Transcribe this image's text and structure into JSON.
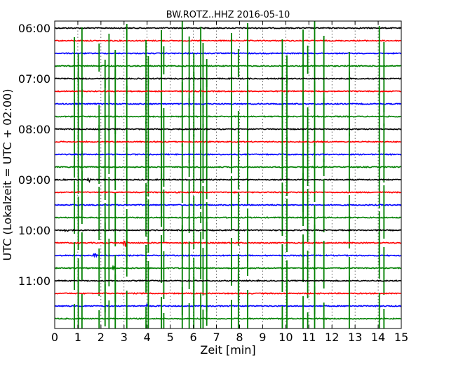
{
  "chart_data": {
    "type": "line",
    "title": "BW.ROTZ..HHZ 2016-05-10",
    "xlabel": "Zeit  [min]",
    "ylabel": "UTC (Lokalzeit = UTC + 02:00)",
    "xlim": [
      0,
      15
    ],
    "x_ticks": [
      "0",
      "1",
      "2",
      "3",
      "4",
      "5",
      "6",
      "7",
      "8",
      "9",
      "10",
      "11",
      "12",
      "13",
      "14",
      "15"
    ],
    "y_ticks": [
      "06:00",
      "07:00",
      "08:00",
      "09:00",
      "10:00",
      "11:00"
    ],
    "grid": "vertical dotted lines at each minute",
    "trace_colors": [
      "#000000",
      "#ff0000",
      "#0000ff",
      "#008000"
    ],
    "traces": [
      {
        "start": "06:00",
        "color": "#000000"
      },
      {
        "start": "06:15",
        "color": "#ff0000"
      },
      {
        "start": "06:30",
        "color": "#0000ff"
      },
      {
        "start": "06:45",
        "color": "#008000"
      },
      {
        "start": "07:00",
        "color": "#000000"
      },
      {
        "start": "07:15",
        "color": "#ff0000"
      },
      {
        "start": "07:30",
        "color": "#0000ff"
      },
      {
        "start": "07:45",
        "color": "#008000"
      },
      {
        "start": "08:00",
        "color": "#000000"
      },
      {
        "start": "08:15",
        "color": "#ff0000"
      },
      {
        "start": "08:30",
        "color": "#0000ff"
      },
      {
        "start": "08:45",
        "color": "#008000"
      },
      {
        "start": "09:00",
        "color": "#000000"
      },
      {
        "start": "09:15",
        "color": "#ff0000"
      },
      {
        "start": "09:30",
        "color": "#0000ff"
      },
      {
        "start": "09:45",
        "color": "#008000"
      },
      {
        "start": "10:00",
        "color": "#000000"
      },
      {
        "start": "10:15",
        "color": "#ff0000"
      },
      {
        "start": "10:30",
        "color": "#0000ff"
      },
      {
        "start": "10:45",
        "color": "#008000"
      },
      {
        "start": "11:00",
        "color": "#000000"
      },
      {
        "start": "11:15",
        "color": "#ff0000"
      },
      {
        "start": "11:30",
        "color": "#0000ff"
      },
      {
        "start": "11:45",
        "color": "#008000"
      }
    ],
    "green_spikes_min": [
      0.85,
      1.02,
      1.18,
      1.92,
      2.18,
      2.35,
      2.62,
      3.12,
      3.95,
      4.05,
      4.62,
      4.72,
      5.52,
      5.82,
      6.02,
      6.32,
      6.42,
      6.58,
      7.65,
      7.95,
      8.35,
      9.85,
      10.05,
      10.75,
      10.95,
      11.25,
      11.65,
      12.75,
      14.05,
      14.25
    ],
    "local_events": [
      {
        "trace": "09:00",
        "x": 1.5,
        "amp": 0.45
      },
      {
        "trace": "10:00",
        "x": 0.5,
        "amp": 0.35
      },
      {
        "trace": "10:15",
        "x": 3.05,
        "amp": 0.7
      },
      {
        "trace": "10:30",
        "x": 1.75,
        "amp": 0.35
      },
      {
        "trace": "10:45",
        "x": 2.55,
        "amp": 0.3
      },
      {
        "trace": "11:30",
        "x": 4.0,
        "amp": 0.25
      }
    ]
  }
}
